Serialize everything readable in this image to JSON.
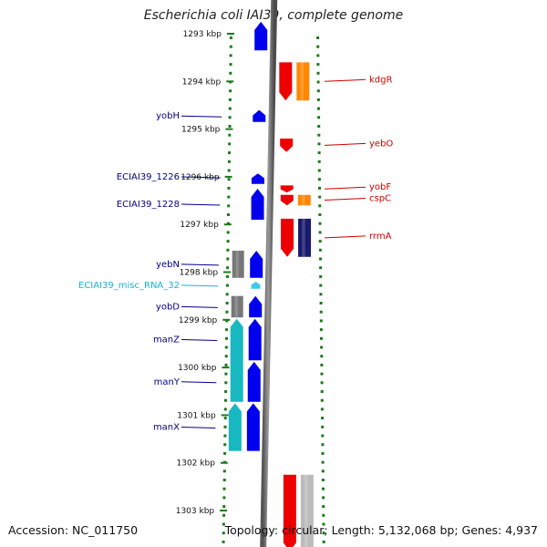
{
  "title": "Escherichia coli IAI39, complete genome",
  "footer": {
    "accession": "Accession: NC_011750",
    "stats": "Topology: circular; Length: 5,132,068 bp; Genes: 4,937"
  },
  "colors": {
    "gene_forward": "#0000ee",
    "gene_reverse": "#ee0000",
    "cds_reverse": "#ff8800",
    "cds_forward_cyan": "#18b8c0",
    "pseudo_gray": "#777777",
    "rrna_navy": "#1a1a6e",
    "misc_rna": "#3fc8f0",
    "label_forward": "#000088",
    "label_reverse": "#cc0000",
    "label_misc": "#1ab0d8",
    "tick": "#1a7a1a"
  },
  "ruler": {
    "unit": "kbp",
    "ticks": [
      "1293 kbp",
      "1294 kbp",
      "1295 kbp",
      "1296 kbp",
      "1297 kbp",
      "1298 kbp",
      "1299 kbp",
      "1300 kbp",
      "1301 kbp",
      "1302 kbp",
      "1303 kbp"
    ]
  },
  "forward_features": [
    {
      "label": "",
      "kbp_start": 1292.75,
      "kbp_end": 1293.35,
      "kind": "gene"
    },
    {
      "label": "yobH",
      "kbp_start": 1294.6,
      "kbp_end": 1294.85,
      "kind": "gene"
    },
    {
      "label": "ECIAI39_1226",
      "kbp_start": 1295.93,
      "kbp_end": 1296.15,
      "kind": "gene"
    },
    {
      "label": "ECIAI39_1228",
      "kbp_start": 1296.25,
      "kbp_end": 1296.9,
      "kind": "gene"
    },
    {
      "label": "yebN",
      "kbp_start": 1297.55,
      "kbp_end": 1298.12,
      "kind": "gene"
    },
    {
      "label": "ECIAI39_misc_RNA_32",
      "kbp_start": 1298.2,
      "kbp_end": 1298.35,
      "kind": "misc"
    },
    {
      "label": "yobD",
      "kbp_start": 1298.5,
      "kbp_end": 1298.95,
      "kind": "gene"
    },
    {
      "label": "manZ",
      "kbp_start": 1298.98,
      "kbp_end": 1299.85,
      "kind": "gene"
    },
    {
      "label": "manY",
      "kbp_start": 1299.88,
      "kbp_end": 1300.72,
      "kind": "gene"
    },
    {
      "label": "manX",
      "kbp_start": 1300.75,
      "kbp_end": 1301.75,
      "kind": "gene"
    }
  ],
  "forward_cds": [
    {
      "kbp_start": 1297.55,
      "kbp_end": 1298.12,
      "kind": "gray"
    },
    {
      "kbp_start": 1298.5,
      "kbp_end": 1298.95,
      "kind": "gray"
    },
    {
      "kbp_start": 1298.98,
      "kbp_end": 1300.72,
      "kind": "cyan"
    },
    {
      "kbp_start": 1300.75,
      "kbp_end": 1301.75,
      "kind": "cyan"
    }
  ],
  "reverse_features": [
    {
      "label": "kdgR",
      "kbp_start": 1293.6,
      "kbp_end": 1294.4,
      "kind": "gene"
    },
    {
      "label": "yebO",
      "kbp_start": 1295.2,
      "kbp_end": 1295.48,
      "kind": "gene"
    },
    {
      "label": "yobF",
      "kbp_start": 1296.18,
      "kbp_end": 1296.33,
      "kind": "gene"
    },
    {
      "label": "cspC",
      "kbp_start": 1296.38,
      "kbp_end": 1296.6,
      "kind": "gene"
    },
    {
      "label": "rrmA",
      "kbp_start": 1296.88,
      "kbp_end": 1297.68,
      "kind": "gene"
    },
    {
      "label": "",
      "kbp_start": 1302.25,
      "kbp_end": 1303.85,
      "kind": "gene"
    }
  ],
  "reverse_cds": [
    {
      "kbp_start": 1293.6,
      "kbp_end": 1294.4,
      "kind": "orange"
    },
    {
      "kbp_start": 1296.38,
      "kbp_end": 1296.6,
      "kind": "orange"
    },
    {
      "kbp_start": 1296.88,
      "kbp_end": 1297.68,
      "kind": "navy"
    },
    {
      "kbp_start": 1302.25,
      "kbp_end": 1303.85,
      "kind": "lightgray"
    }
  ]
}
